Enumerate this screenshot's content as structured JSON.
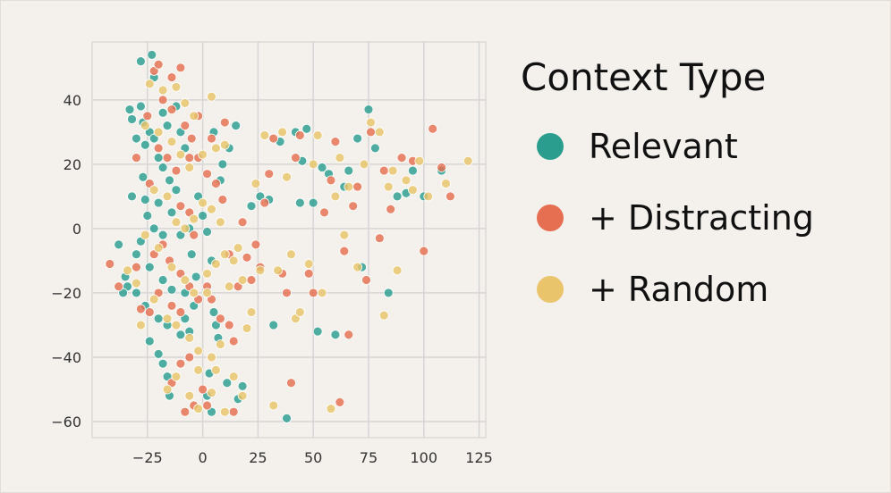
{
  "chart_data": {
    "type": "scatter",
    "title": "",
    "xlabel": "",
    "ylabel": "",
    "xlim": [
      -50,
      128
    ],
    "ylim": [
      -65,
      58
    ],
    "xticks": [
      -25,
      0,
      25,
      50,
      75,
      100,
      125
    ],
    "yticks": [
      -60,
      -40,
      -20,
      0,
      20,
      40
    ],
    "xtick_labels": [
      "−25",
      "0",
      "25",
      "50",
      "75",
      "100",
      "125"
    ],
    "ytick_labels": [
      "−60",
      "−40",
      "−20",
      "0",
      "20",
      "40"
    ],
    "grid": true,
    "legend": {
      "title": "Context Type",
      "placement": "right"
    },
    "series": [
      {
        "name": "Relevant",
        "color": "#2a9d8f",
        "points": [
          [
            -28,
            52
          ],
          [
            -23,
            54
          ],
          [
            -22,
            47
          ],
          [
            -28,
            38
          ],
          [
            -33,
            37
          ],
          [
            -32,
            34
          ],
          [
            -27,
            33
          ],
          [
            -24,
            30
          ],
          [
            -22,
            28
          ],
          [
            -18,
            36
          ],
          [
            -16,
            32
          ],
          [
            -12,
            38
          ],
          [
            -10,
            30
          ],
          [
            -8,
            25
          ],
          [
            -30,
            28
          ],
          [
            -26,
            26
          ],
          [
            -20,
            22
          ],
          [
            -15,
            15
          ],
          [
            -12,
            12
          ],
          [
            -27,
            16
          ],
          [
            -20,
            8
          ],
          [
            -25,
            4
          ],
          [
            -22,
            0
          ],
          [
            -18,
            -2
          ],
          [
            -14,
            5
          ],
          [
            -28,
            -4
          ],
          [
            -30,
            -8
          ],
          [
            -24,
            -12
          ],
          [
            -18,
            -16
          ],
          [
            -14,
            -19
          ],
          [
            -34,
            -18
          ],
          [
            -30,
            -20
          ],
          [
            -26,
            -24
          ],
          [
            -20,
            -28
          ],
          [
            -16,
            -30
          ],
          [
            -10,
            -33
          ],
          [
            -24,
            -35
          ],
          [
            -20,
            -39
          ],
          [
            -18,
            -42
          ],
          [
            -16,
            -46
          ],
          [
            -15,
            -52
          ],
          [
            -8,
            -28
          ],
          [
            -6,
            -32
          ],
          [
            -5,
            -8
          ],
          [
            -3,
            -15
          ],
          [
            -2,
            10
          ],
          [
            0,
            4
          ],
          [
            2,
            -1
          ],
          [
            4,
            -10
          ],
          [
            5,
            -26
          ],
          [
            6,
            -30
          ],
          [
            7,
            -34
          ],
          [
            3,
            -45
          ],
          [
            2,
            -52
          ],
          [
            4,
            -57
          ],
          [
            11,
            -48
          ],
          [
            16,
            -53
          ],
          [
            18,
            -49
          ],
          [
            8,
            15
          ],
          [
            9,
            20
          ],
          [
            12,
            25
          ],
          [
            15,
            32
          ],
          [
            5,
            30
          ],
          [
            -38,
            -5
          ],
          [
            -35,
            -15
          ],
          [
            -36,
            -20
          ],
          [
            -32,
            10
          ],
          [
            22,
            7
          ],
          [
            26,
            10
          ],
          [
            30,
            9
          ],
          [
            32,
            -30
          ],
          [
            35,
            27
          ],
          [
            38,
            -59
          ],
          [
            42,
            30
          ],
          [
            44,
            8
          ],
          [
            45,
            21
          ],
          [
            47,
            31
          ],
          [
            50,
            8
          ],
          [
            52,
            -32
          ],
          [
            54,
            19
          ],
          [
            57,
            17
          ],
          [
            60,
            -33
          ],
          [
            64,
            13
          ],
          [
            66,
            18
          ],
          [
            70,
            28
          ],
          [
            72,
            -12
          ],
          [
            75,
            37
          ],
          [
            78,
            25
          ],
          [
            84,
            -20
          ],
          [
            88,
            10
          ],
          [
            92,
            11
          ],
          [
            95,
            18
          ],
          [
            100,
            10
          ],
          [
            108,
            18
          ],
          [
            -10,
            -2
          ],
          [
            -6,
            0
          ],
          [
            -8,
            -20
          ],
          [
            -4,
            -24
          ],
          [
            -26,
            9
          ],
          [
            -18,
            19
          ]
        ]
      },
      {
        "name": "+ Distracting",
        "color": "#e76f51",
        "points": [
          [
            -22,
            49
          ],
          [
            -20,
            51
          ],
          [
            -14,
            47
          ],
          [
            -10,
            50
          ],
          [
            -18,
            40
          ],
          [
            -14,
            37
          ],
          [
            -8,
            32
          ],
          [
            -5,
            28
          ],
          [
            -25,
            35
          ],
          [
            -20,
            25
          ],
          [
            -16,
            22
          ],
          [
            -12,
            18
          ],
          [
            -6,
            22
          ],
          [
            -2,
            22
          ],
          [
            2,
            17
          ],
          [
            6,
            14
          ],
          [
            9,
            9
          ],
          [
            -10,
            7
          ],
          [
            -6,
            5
          ],
          [
            -4,
            -2
          ],
          [
            -18,
            -5
          ],
          [
            -22,
            -8
          ],
          [
            -15,
            -10
          ],
          [
            -10,
            -14
          ],
          [
            -6,
            -18
          ],
          [
            -20,
            -20
          ],
          [
            -28,
            -25
          ],
          [
            -24,
            -26
          ],
          [
            -14,
            -24
          ],
          [
            -10,
            -26
          ],
          [
            -2,
            -22
          ],
          [
            2,
            -18
          ],
          [
            4,
            -22
          ],
          [
            8,
            -28
          ],
          [
            12,
            -30
          ],
          [
            14,
            -35
          ],
          [
            -6,
            -40
          ],
          [
            -10,
            -42
          ],
          [
            -14,
            -48
          ],
          [
            -8,
            -57
          ],
          [
            -4,
            -55
          ],
          [
            0,
            -50
          ],
          [
            2,
            -55
          ],
          [
            14,
            -57
          ],
          [
            22,
            -16
          ],
          [
            24,
            -5
          ],
          [
            26,
            -12
          ],
          [
            28,
            8
          ],
          [
            30,
            17
          ],
          [
            32,
            28
          ],
          [
            36,
            -14
          ],
          [
            38,
            -20
          ],
          [
            40,
            -48
          ],
          [
            42,
            22
          ],
          [
            44,
            29
          ],
          [
            48,
            -14
          ],
          [
            50,
            -20
          ],
          [
            55,
            5
          ],
          [
            58,
            15
          ],
          [
            60,
            27
          ],
          [
            62,
            -54
          ],
          [
            64,
            -7
          ],
          [
            66,
            -33
          ],
          [
            68,
            7
          ],
          [
            70,
            13
          ],
          [
            74,
            -16
          ],
          [
            76,
            30
          ],
          [
            80,
            -3
          ],
          [
            82,
            18
          ],
          [
            85,
            6
          ],
          [
            90,
            22
          ],
          [
            95,
            21
          ],
          [
            100,
            -7
          ],
          [
            104,
            31
          ],
          [
            108,
            19
          ],
          [
            112,
            10
          ],
          [
            -42,
            -11
          ],
          [
            -38,
            -18
          ],
          [
            16,
            -18
          ],
          [
            12,
            -8
          ],
          [
            18,
            2
          ],
          [
            20,
            -9
          ],
          [
            -2,
            35
          ],
          [
            4,
            28
          ],
          [
            10,
            33
          ],
          [
            -30,
            22
          ],
          [
            -24,
            14
          ],
          [
            -30,
            -12
          ]
        ]
      },
      {
        "name": "+ Random",
        "color": "#e9c46a",
        "points": [
          [
            -24,
            45
          ],
          [
            -18,
            43
          ],
          [
            -12,
            44
          ],
          [
            -8,
            39
          ],
          [
            -4,
            35
          ],
          [
            4,
            41
          ],
          [
            -26,
            32
          ],
          [
            -20,
            30
          ],
          [
            -14,
            27
          ],
          [
            -10,
            23
          ],
          [
            -6,
            19
          ],
          [
            0,
            23
          ],
          [
            6,
            25
          ],
          [
            10,
            26
          ],
          [
            -22,
            12
          ],
          [
            -16,
            10
          ],
          [
            -12,
            2
          ],
          [
            -8,
            0
          ],
          [
            -4,
            3
          ],
          [
            0,
            8
          ],
          [
            4,
            6
          ],
          [
            8,
            2
          ],
          [
            -26,
            -2
          ],
          [
            -20,
            -6
          ],
          [
            -14,
            -12
          ],
          [
            -8,
            -16
          ],
          [
            -4,
            -20
          ],
          [
            2,
            -14
          ],
          [
            6,
            -11
          ],
          [
            10,
            -8
          ],
          [
            -22,
            -22
          ],
          [
            -16,
            -28
          ],
          [
            -12,
            -30
          ],
          [
            -6,
            -34
          ],
          [
            -2,
            -38
          ],
          [
            4,
            -40
          ],
          [
            8,
            -36
          ],
          [
            -16,
            -50
          ],
          [
            -12,
            -46
          ],
          [
            -6,
            -52
          ],
          [
            -2,
            -56
          ],
          [
            4,
            -51
          ],
          [
            10,
            -57
          ],
          [
            14,
            -46
          ],
          [
            18,
            -52
          ],
          [
            20,
            -31
          ],
          [
            22,
            -26
          ],
          [
            26,
            -13
          ],
          [
            28,
            29
          ],
          [
            32,
            -55
          ],
          [
            34,
            -13
          ],
          [
            36,
            30
          ],
          [
            38,
            16
          ],
          [
            40,
            -8
          ],
          [
            42,
            -28
          ],
          [
            44,
            -26
          ],
          [
            48,
            -11
          ],
          [
            50,
            20
          ],
          [
            52,
            29
          ],
          [
            54,
            -20
          ],
          [
            58,
            -56
          ],
          [
            60,
            10
          ],
          [
            62,
            22
          ],
          [
            64,
            -2
          ],
          [
            66,
            13
          ],
          [
            70,
            -12
          ],
          [
            73,
            20
          ],
          [
            76,
            33
          ],
          [
            80,
            30
          ],
          [
            84,
            13
          ],
          [
            86,
            18
          ],
          [
            88,
            -13
          ],
          [
            92,
            15
          ],
          [
            95,
            12
          ],
          [
            98,
            21
          ],
          [
            102,
            10
          ],
          [
            110,
            14
          ],
          [
            120,
            21
          ],
          [
            82,
            -27
          ],
          [
            -34,
            -13
          ],
          [
            -30,
            -17
          ],
          [
            14,
            -10
          ],
          [
            16,
            -6
          ],
          [
            18,
            -16
          ],
          [
            24,
            14
          ],
          [
            12,
            -18
          ],
          [
            2,
            -20
          ],
          [
            -28,
            -30
          ],
          [
            -2,
            -44
          ],
          [
            6,
            -44
          ]
        ]
      }
    ]
  }
}
